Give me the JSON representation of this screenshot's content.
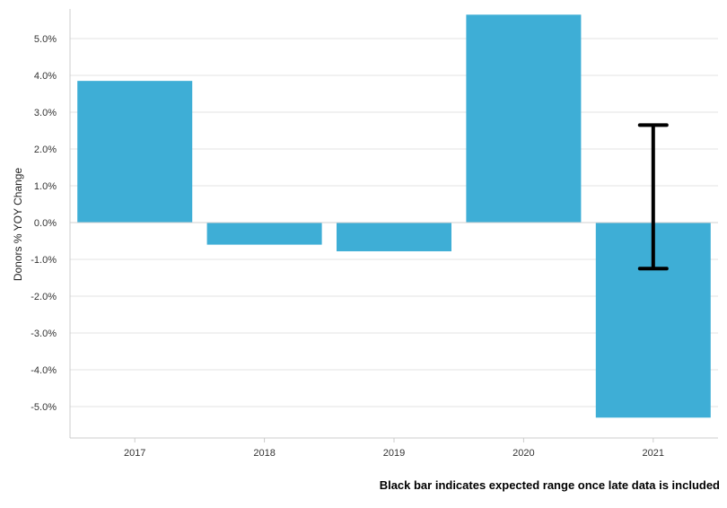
{
  "chart_data": {
    "type": "bar",
    "categories": [
      "2017",
      "2018",
      "2019",
      "2020",
      "2021"
    ],
    "values": [
      3.85,
      -0.6,
      -0.78,
      5.65,
      -5.3
    ],
    "error_bar": {
      "category": "2021",
      "low": -1.25,
      "high": 2.65,
      "color": "#000000"
    },
    "ylabel": "Donors % YOY Change",
    "y_ticks": [
      5.0,
      4.0,
      3.0,
      2.0,
      1.0,
      0.0,
      -1.0,
      -2.0,
      -3.0,
      -4.0,
      -5.0
    ],
    "y_tick_labels": [
      "5.0%",
      "4.0%",
      "3.0%",
      "2.0%",
      "1.0%",
      "0.0%",
      "-1.0%",
      "-2.0%",
      "-3.0%",
      "-4.0%",
      "-5.0%"
    ],
    "ylim": [
      -5.75,
      5.85
    ],
    "grid": true,
    "bar_color": "#3eaed6",
    "note": "Black bar indicates expected range once late data is included"
  }
}
